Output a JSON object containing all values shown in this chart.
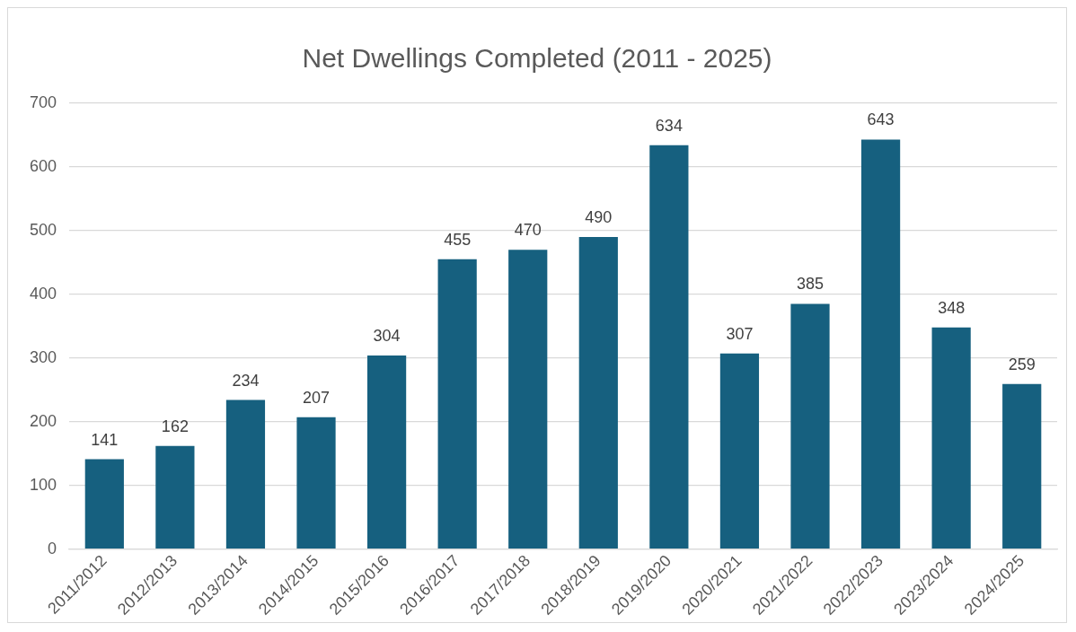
{
  "chart_data": {
    "type": "bar",
    "title": "Net Dwellings Completed (2011 - 2025)",
    "categories": [
      "2011/2012",
      "2012/2013",
      "2013/2014",
      "2014/2015",
      "2015/2016",
      "2016/2017",
      "2017/2018",
      "2018/2019",
      "2019/2020",
      "2020/2021",
      "2021/2022",
      "2022/2023",
      "2023/2024",
      "2024/2025"
    ],
    "values": [
      141,
      162,
      234,
      207,
      304,
      455,
      470,
      490,
      634,
      307,
      385,
      643,
      348,
      259
    ],
    "color": "#16607f",
    "ylim": [
      0,
      700
    ],
    "yticks": [
      0,
      100,
      200,
      300,
      400,
      500,
      600,
      700
    ],
    "grid": "y",
    "data_labels": true
  }
}
